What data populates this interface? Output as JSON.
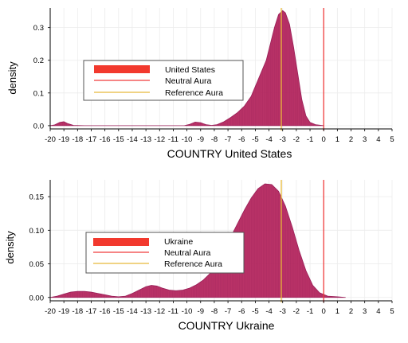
{
  "colors": {
    "fill": "#b5275f",
    "stroke": "#9a1f58",
    "legend_fill": "#f2392e",
    "neutral_line": "#f03c3c",
    "reference_line": "#e8b93a",
    "grid": "#ececec"
  },
  "chart_data": [
    {
      "type": "area",
      "xlabel": "COUNTRY United States",
      "ylabel": "density",
      "xlim": [
        -20,
        5
      ],
      "ylim": [
        -0.01,
        0.36
      ],
      "x_ticks": [
        "-20",
        "-19",
        "-18",
        "-17",
        "-16",
        "-15",
        "-14",
        "-13",
        "-12",
        "-11",
        "-10",
        "-9",
        "-8",
        "-7",
        "-6",
        "-5",
        "-4",
        "-3",
        "-2",
        "-1",
        "0",
        "1",
        "2",
        "3",
        "4",
        "5"
      ],
      "y_ticks": [
        "0.0",
        "0.1",
        "0.2",
        "0.3"
      ],
      "grid": true,
      "legend_position": "middle-left",
      "legend": [
        "United States",
        "Neutral Aura",
        "Reference Aura"
      ],
      "neutral_x": 0,
      "reference_x": -3.1,
      "density": [
        [
          -20,
          0
        ],
        [
          -19.7,
          0.002
        ],
        [
          -19.3,
          0.01
        ],
        [
          -19.0,
          0.012
        ],
        [
          -18.7,
          0.006
        ],
        [
          -18.3,
          0.001
        ],
        [
          -17.5,
          0
        ],
        [
          -10.2,
          0
        ],
        [
          -9.8,
          0.004
        ],
        [
          -9.4,
          0.011
        ],
        [
          -9.0,
          0.009
        ],
        [
          -8.6,
          0.003
        ],
        [
          -8.2,
          0.001
        ],
        [
          -7.8,
          0.003
        ],
        [
          -7.3,
          0.012
        ],
        [
          -6.8,
          0.025
        ],
        [
          -6.3,
          0.04
        ],
        [
          -5.8,
          0.06
        ],
        [
          -5.3,
          0.09
        ],
        [
          -5.0,
          0.12
        ],
        [
          -4.6,
          0.16
        ],
        [
          -4.2,
          0.2
        ],
        [
          -3.9,
          0.25
        ],
        [
          -3.6,
          0.3
        ],
        [
          -3.3,
          0.34
        ],
        [
          -3.0,
          0.352
        ],
        [
          -2.8,
          0.345
        ],
        [
          -2.5,
          0.31
        ],
        [
          -2.2,
          0.24
        ],
        [
          -1.9,
          0.16
        ],
        [
          -1.6,
          0.08
        ],
        [
          -1.3,
          0.03
        ],
        [
          -1.0,
          0.01
        ],
        [
          -0.6,
          0.003
        ],
        [
          0,
          0
        ]
      ]
    },
    {
      "type": "area",
      "xlabel": "COUNTRY Ukraine",
      "ylabel": "density",
      "xlim": [
        -20,
        5
      ],
      "ylim": [
        -0.005,
        0.175
      ],
      "x_ticks": [
        "-20",
        "-19",
        "-18",
        "-17",
        "-16",
        "-15",
        "-14",
        "-13",
        "-12",
        "-11",
        "-10",
        "-9",
        "-8",
        "-7",
        "-6",
        "-5",
        "-4",
        "-3",
        "-2",
        "-1",
        "0",
        "1",
        "2",
        "3",
        "4",
        "5"
      ],
      "y_ticks": [
        "0.00",
        "0.05",
        "0.10",
        "0.15"
      ],
      "grid": true,
      "legend_position": "middle-left",
      "legend": [
        "Ukraine",
        "Neutral Aura",
        "Reference Aura"
      ],
      "neutral_x": 0,
      "reference_x": -3.1,
      "density": [
        [
          -20,
          0.0
        ],
        [
          -19.5,
          0.002
        ],
        [
          -19,
          0.005
        ],
        [
          -18.5,
          0.008
        ],
        [
          -18,
          0.009
        ],
        [
          -17.5,
          0.009
        ],
        [
          -17,
          0.008
        ],
        [
          -16.5,
          0.006
        ],
        [
          -16,
          0.004
        ],
        [
          -15.5,
          0.002
        ],
        [
          -15,
          0.001
        ],
        [
          -14.5,
          0.002
        ],
        [
          -14,
          0.006
        ],
        [
          -13.5,
          0.011
        ],
        [
          -13,
          0.016
        ],
        [
          -12.6,
          0.018
        ],
        [
          -12.2,
          0.017
        ],
        [
          -11.8,
          0.014
        ],
        [
          -11.3,
          0.011
        ],
        [
          -10.8,
          0.01
        ],
        [
          -10.3,
          0.011
        ],
        [
          -9.8,
          0.014
        ],
        [
          -9.3,
          0.019
        ],
        [
          -8.8,
          0.026
        ],
        [
          -8.3,
          0.036
        ],
        [
          -7.8,
          0.05
        ],
        [
          -7.3,
          0.068
        ],
        [
          -6.8,
          0.09
        ],
        [
          -6.3,
          0.11
        ],
        [
          -5.8,
          0.13
        ],
        [
          -5.3,
          0.148
        ],
        [
          -4.8,
          0.162
        ],
        [
          -4.3,
          0.169
        ],
        [
          -3.8,
          0.168
        ],
        [
          -3.3,
          0.158
        ],
        [
          -2.8,
          0.136
        ],
        [
          -2.3,
          0.105
        ],
        [
          -1.8,
          0.07
        ],
        [
          -1.3,
          0.04
        ],
        [
          -0.8,
          0.018
        ],
        [
          -0.3,
          0.007
        ],
        [
          0.3,
          0.002
        ],
        [
          1.0,
          0.001
        ],
        [
          1.6,
          0.0
        ]
      ]
    }
  ]
}
